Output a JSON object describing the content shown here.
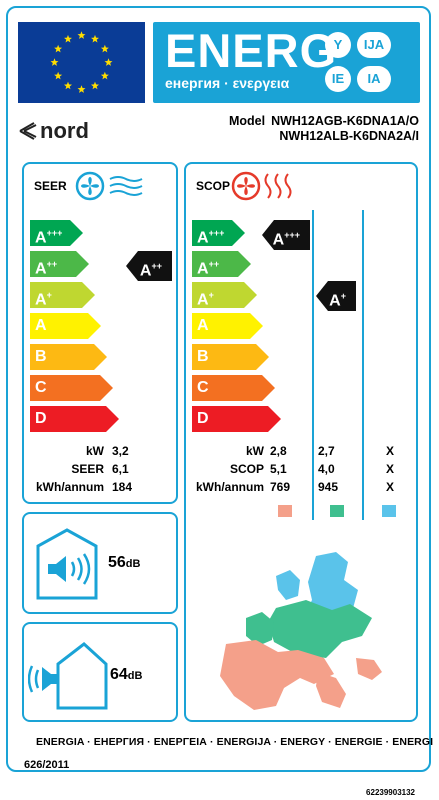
{
  "header": {
    "energ_word": "ENERG",
    "energ_subtitle": "енергия · ενεργεια",
    "language_marks": [
      "Y",
      "IJA",
      "IE",
      "IA"
    ],
    "brand_logo_text": "nord",
    "model_label": "Model",
    "model_lines": [
      "NWH12AGB-K6DNA1A/O",
      "NWH12ALB-K6DNA2A/I"
    ]
  },
  "cooling": {
    "title": "SEER",
    "scale": [
      "A+++",
      "A++",
      "A+",
      "A",
      "B",
      "C",
      "D"
    ],
    "class": "A++",
    "rows": [
      {
        "label": "kW",
        "value": "3,2"
      },
      {
        "label": "SEER",
        "value": "6,1"
      },
      {
        "label": "kWh/annum",
        "value": "184"
      }
    ]
  },
  "heating": {
    "title": "SCOP",
    "scale": [
      "A+++",
      "A++",
      "A+",
      "A",
      "B",
      "C",
      "D"
    ],
    "class_warmer": "A+++",
    "class_average": "A+",
    "rows": [
      {
        "label": "kW",
        "values": [
          "2,8",
          "2,7",
          "X"
        ]
      },
      {
        "label": "SCOP",
        "values": [
          "5,1",
          "4,0",
          "X"
        ]
      },
      {
        "label": "kWh/annum",
        "values": [
          "769",
          "945",
          "X"
        ]
      }
    ],
    "zone_colors": [
      "#f4a08a",
      "#3fbf8f",
      "#5ac3ea"
    ]
  },
  "noise": {
    "indoor": {
      "value": "56",
      "unit": "dB"
    },
    "outdoor": {
      "value": "64",
      "unit": "dB"
    }
  },
  "footer": {
    "languages": "ENERGIA · ЕНЕРГИЯ · ΕΝΕΡΓΕΙΑ · ENERGIJA · ENERGY · ENERGIE · ENERGI",
    "regulation": "626/2011",
    "label_code": "62239903132"
  },
  "colors": {
    "accent": "#1aa3d6",
    "eu_blue": "#0a3c96",
    "eu_star": "#ffdd00",
    "scale": [
      "#00a652",
      "#4cb848",
      "#bfd730",
      "#fff200",
      "#fdb913",
      "#f37021",
      "#ed1c24"
    ]
  }
}
